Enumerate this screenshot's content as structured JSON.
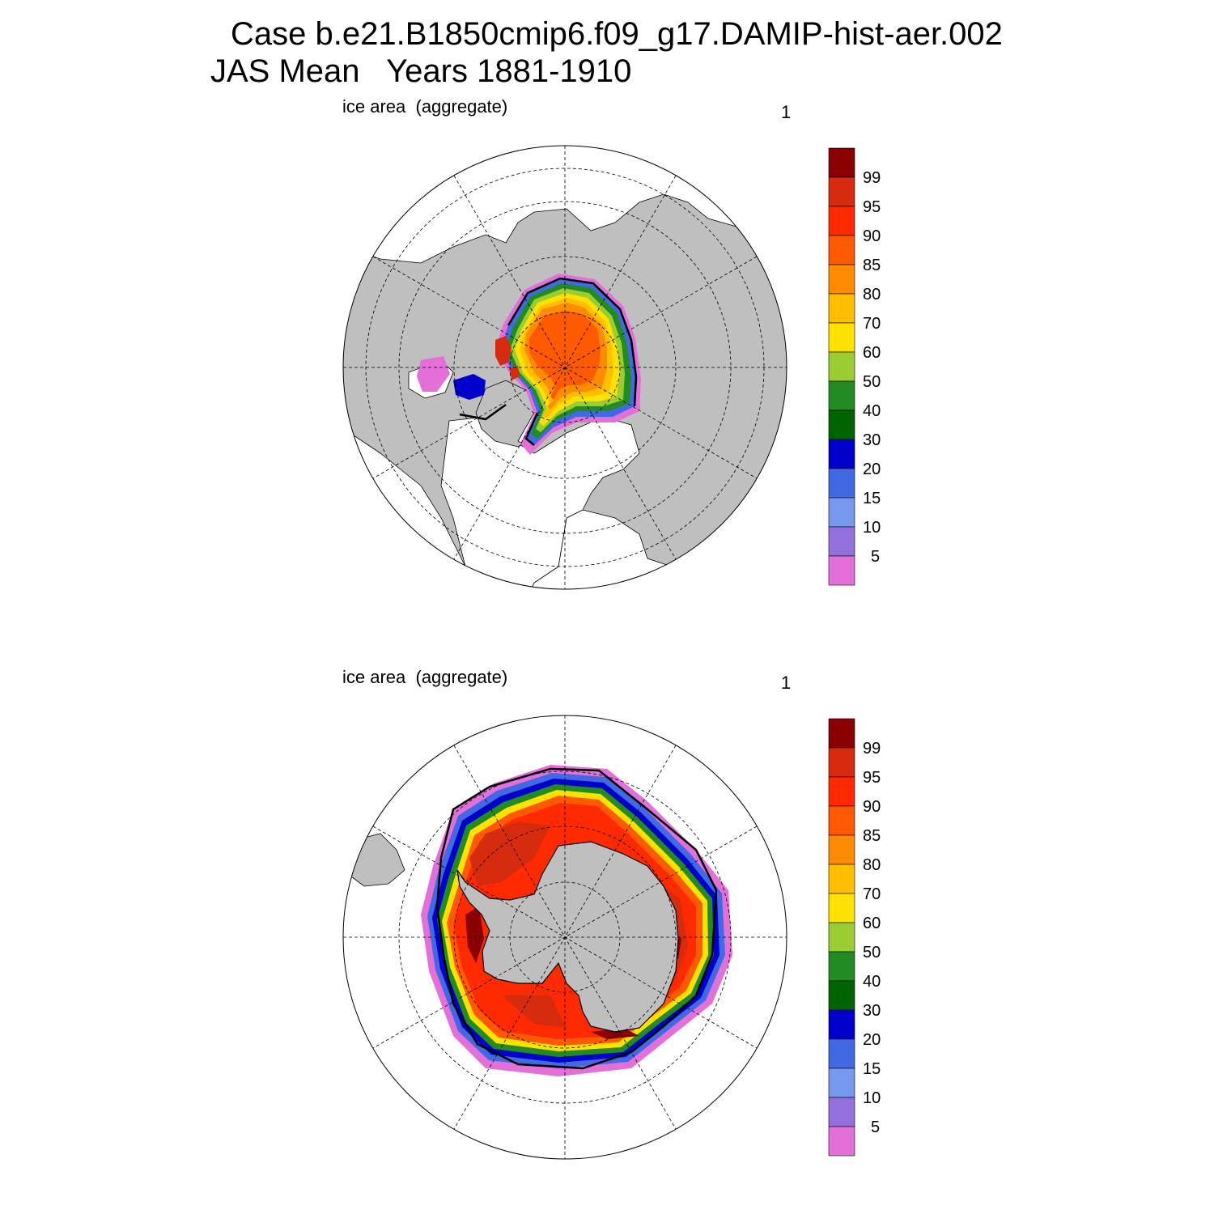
{
  "title": {
    "line1": "Case b.e21.B1850cmip6.f09_g17.DAMIP-hist-aer.002",
    "line2": "JAS Mean   Years 1881-1910"
  },
  "panels": [
    {
      "hemisphere": "north",
      "variable_label": "ice area  (aggregate)",
      "units_label": "1"
    },
    {
      "hemisphere": "south",
      "variable_label": "ice area  (aggregate)",
      "units_label": "1"
    }
  ],
  "colorbar": {
    "labels": [
      "99",
      "95",
      "90",
      "85",
      "80",
      "70",
      "60",
      "50",
      "40",
      "30",
      "20",
      "15",
      "10",
      "5"
    ],
    "colors": [
      "#8b0000",
      "#d62b0e",
      "#ff2a00",
      "#ff5a00",
      "#ff8c00",
      "#ffbe00",
      "#ffe100",
      "#9acd32",
      "#228b22",
      "#006400",
      "#0000cd",
      "#4169e1",
      "#7799ee",
      "#9370db",
      "#e36fd9"
    ]
  },
  "map_colors": {
    "land": "#bfbfbf",
    "ocean": "#ffffff",
    "grid": "#000000"
  }
}
